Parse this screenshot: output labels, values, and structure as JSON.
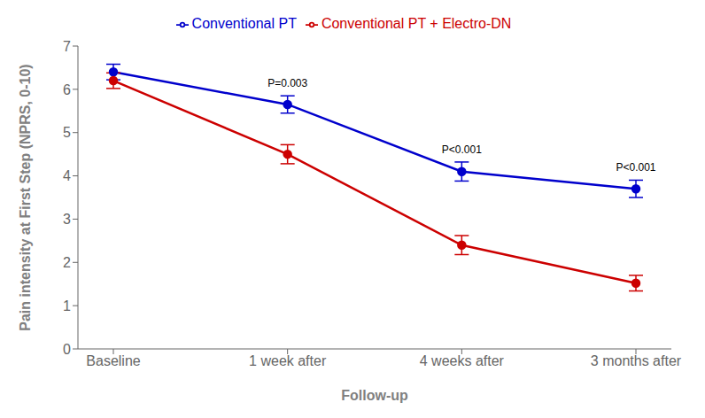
{
  "chart_data": {
    "type": "line",
    "xlabel": "Follow-up",
    "ylabel": "Pain intensity at First Step (NPRS, 0-10)",
    "categories": [
      "Baseline",
      "1 week after",
      "4 weeks after",
      "3 months after"
    ],
    "series": [
      {
        "name": "Conventional PT",
        "color": "#0000cc",
        "marker": "circle",
        "values": [
          6.4,
          5.65,
          4.1,
          3.7
        ],
        "yerr": [
          0.18,
          0.2,
          0.22,
          0.2
        ]
      },
      {
        "name": "Conventional PT + Electro-DN",
        "color": "#cc0000",
        "marker": "circle",
        "values": [
          6.2,
          4.5,
          2.4,
          1.52
        ],
        "yerr": [
          0.18,
          0.22,
          0.22,
          0.18
        ]
      }
    ],
    "ylim": [
      0,
      7
    ],
    "yticks": [
      0,
      1,
      2,
      3,
      4,
      5,
      6,
      7
    ],
    "grid": false,
    "legend": "top",
    "annotations": [
      {
        "text": "P=0.003",
        "x": "1 week after",
        "series": "Conventional PT"
      },
      {
        "text": "P<0.001",
        "x": "4 weeks after",
        "series": "Conventional PT"
      },
      {
        "text": "P<0.001",
        "x": "3 months after",
        "series": "Conventional PT"
      }
    ]
  }
}
